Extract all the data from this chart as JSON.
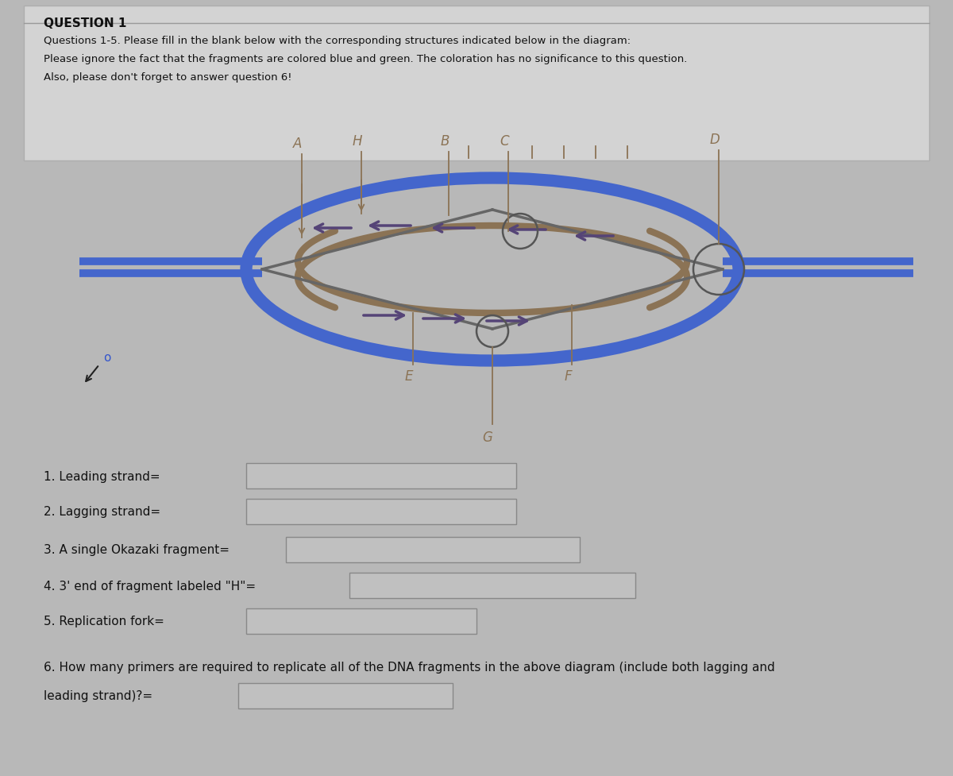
{
  "title": "QUESTION 1",
  "line1": "Questions 1-5. Please fill in the blank below with the corresponding structures indicated below in the diagram:",
  "line2": "Please ignore the fact that the fragments are colored blue and green. The coloration has no significance to this question.",
  "line3": "Also, please don't forget to answer question 6!",
  "bg_color": "#b8b8b8",
  "panel_color": "#c8c8c8",
  "blue_color": "#4466cc",
  "tan_color": "#8B7355",
  "arrow_color": "#554477",
  "gray_strand": "#666666",
  "text_color": "#111111",
  "box_color": "#c0c0c0",
  "q1": "1. Leading strand=",
  "q2": "2. Lagging strand=",
  "q3": "3. A single Okazaki fragment=",
  "q4": "4. 3' end of fragment labeled \"H\"=",
  "q5": "5. Replication fork=",
  "q6a": "6. How many primers are required to replicate all of the DNA fragments in the above diagram (include both lagging and",
  "q6b": "leading strand)?="
}
